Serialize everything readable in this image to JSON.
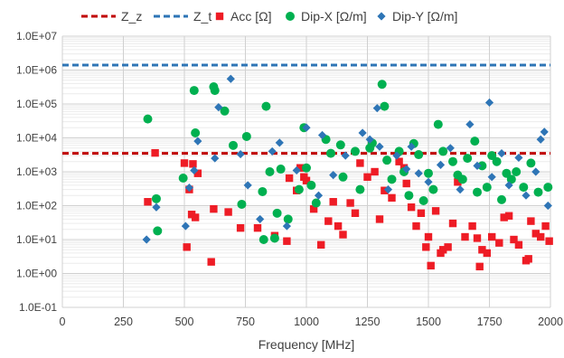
{
  "chart_data": {
    "type": "scatter",
    "xlabel": "Frequency [MHz]",
    "ylabel": "",
    "xlim": [
      0,
      2000
    ],
    "ylim": [
      0.1,
      10000000
    ],
    "y_scale": "log",
    "grid": true,
    "legend_position": "top",
    "x_ticks": [
      "0",
      "250",
      "500",
      "750",
      "1000",
      "1250",
      "1500",
      "1750",
      "2000"
    ],
    "y_ticks": [
      "1.0E-01",
      "1.0E+00",
      "1.0E+01",
      "1.0E+02",
      "1.0E+03",
      "1.0E+04",
      "1.0E+05",
      "1.0E+06",
      "1.0E+07"
    ],
    "reference_lines": [
      {
        "name": "Z_z",
        "y": 3500,
        "color": "#c00000",
        "style": "dashed"
      },
      {
        "name": "Z_t",
        "y": 1400000,
        "color": "#2e75b6",
        "style": "dashed"
      }
    ],
    "series": [
      {
        "name": "Acc [Ω]",
        "marker": "square",
        "color": "#ee1c25",
        "points": [
          [
            350,
            130
          ],
          [
            380,
            3600
          ],
          [
            500,
            1800
          ],
          [
            510,
            6
          ],
          [
            520,
            300
          ],
          [
            530,
            55
          ],
          [
            535,
            1700
          ],
          [
            545,
            45
          ],
          [
            555,
            900
          ],
          [
            610,
            2.2
          ],
          [
            620,
            80
          ],
          [
            680,
            65
          ],
          [
            730,
            22
          ],
          [
            800,
            22
          ],
          [
            870,
            13
          ],
          [
            920,
            9
          ],
          [
            930,
            650
          ],
          [
            960,
            280
          ],
          [
            975,
            1300
          ],
          [
            990,
            700
          ],
          [
            1000,
            550
          ],
          [
            1030,
            80
          ],
          [
            1060,
            7
          ],
          [
            1090,
            35
          ],
          [
            1110,
            130
          ],
          [
            1130,
            25
          ],
          [
            1150,
            14
          ],
          [
            1180,
            120
          ],
          [
            1200,
            60
          ],
          [
            1220,
            1800
          ],
          [
            1250,
            700
          ],
          [
            1280,
            1000
          ],
          [
            1300,
            40
          ],
          [
            1320,
            280
          ],
          [
            1350,
            170
          ],
          [
            1380,
            2000
          ],
          [
            1400,
            1300
          ],
          [
            1410,
            450
          ],
          [
            1430,
            90
          ],
          [
            1450,
            25
          ],
          [
            1470,
            60
          ],
          [
            1490,
            6
          ],
          [
            1500,
            12
          ],
          [
            1510,
            1.7
          ],
          [
            1530,
            70
          ],
          [
            1550,
            4
          ],
          [
            1560,
            5
          ],
          [
            1580,
            6
          ],
          [
            1600,
            30
          ],
          [
            1620,
            500
          ],
          [
            1650,
            12
          ],
          [
            1680,
            25
          ],
          [
            1700,
            11
          ],
          [
            1710,
            1.6
          ],
          [
            1720,
            5
          ],
          [
            1740,
            4
          ],
          [
            1760,
            12
          ],
          [
            1790,
            8
          ],
          [
            1810,
            45
          ],
          [
            1830,
            50
          ],
          [
            1850,
            10
          ],
          [
            1870,
            7
          ],
          [
            1900,
            2.4
          ],
          [
            1910,
            2.7
          ],
          [
            1920,
            35
          ],
          [
            1940,
            15
          ],
          [
            1960,
            12
          ],
          [
            1980,
            25
          ],
          [
            1995,
            9
          ]
        ]
      },
      {
        "name": "Dip-X [Ω/m]",
        "marker": "circle",
        "color": "#00b050",
        "points": [
          [
            350,
            36000
          ],
          [
            385,
            160
          ],
          [
            390,
            18
          ],
          [
            495,
            650
          ],
          [
            540,
            250000
          ],
          [
            545,
            14000
          ],
          [
            620,
            320000
          ],
          [
            625,
            250000
          ],
          [
            665,
            62000
          ],
          [
            700,
            6000
          ],
          [
            735,
            110
          ],
          [
            755,
            11000
          ],
          [
            820,
            260
          ],
          [
            825,
            10
          ],
          [
            835,
            85000
          ],
          [
            850,
            1000
          ],
          [
            870,
            11
          ],
          [
            880,
            60
          ],
          [
            895,
            1200
          ],
          [
            925,
            40
          ],
          [
            970,
            300
          ],
          [
            990,
            20000
          ],
          [
            1000,
            1300
          ],
          [
            1020,
            400
          ],
          [
            1040,
            120
          ],
          [
            1080,
            9000
          ],
          [
            1100,
            3500
          ],
          [
            1140,
            6200
          ],
          [
            1150,
            700
          ],
          [
            1200,
            4000
          ],
          [
            1220,
            300
          ],
          [
            1260,
            5000
          ],
          [
            1270,
            7000
          ],
          [
            1310,
            380000
          ],
          [
            1320,
            85000
          ],
          [
            1330,
            2200
          ],
          [
            1350,
            600
          ],
          [
            1380,
            4000
          ],
          [
            1400,
            1000
          ],
          [
            1420,
            200
          ],
          [
            1440,
            6800
          ],
          [
            1460,
            3200
          ],
          [
            1480,
            140
          ],
          [
            1500,
            900
          ],
          [
            1520,
            300
          ],
          [
            1540,
            25000
          ],
          [
            1560,
            4000
          ],
          [
            1600,
            2000
          ],
          [
            1620,
            800
          ],
          [
            1640,
            600
          ],
          [
            1660,
            2500
          ],
          [
            1690,
            8000
          ],
          [
            1700,
            250
          ],
          [
            1720,
            1500
          ],
          [
            1740,
            350
          ],
          [
            1760,
            3000
          ],
          [
            1780,
            2000
          ],
          [
            1800,
            150
          ],
          [
            1820,
            900
          ],
          [
            1840,
            600
          ],
          [
            1860,
            1000
          ],
          [
            1890,
            350
          ],
          [
            1920,
            1800
          ],
          [
            1950,
            250
          ],
          [
            1990,
            350
          ]
        ]
      },
      {
        "name": "Dip-Y [Ω/m]",
        "marker": "diamond",
        "color": "#2e75b6",
        "points": [
          [
            345,
            10
          ],
          [
            385,
            90
          ],
          [
            505,
            25
          ],
          [
            520,
            340
          ],
          [
            540,
            1100
          ],
          [
            555,
            8000
          ],
          [
            625,
            2500
          ],
          [
            640,
            80000
          ],
          [
            690,
            550000
          ],
          [
            730,
            3300
          ],
          [
            760,
            400
          ],
          [
            810,
            40
          ],
          [
            860,
            4000
          ],
          [
            890,
            7200
          ],
          [
            920,
            25
          ],
          [
            960,
            1100
          ],
          [
            1000,
            20000
          ],
          [
            1050,
            200
          ],
          [
            1065,
            12000
          ],
          [
            1110,
            800
          ],
          [
            1160,
            3000
          ],
          [
            1230,
            14000
          ],
          [
            1260,
            9000
          ],
          [
            1290,
            75000
          ],
          [
            1300,
            5500
          ],
          [
            1335,
            300
          ],
          [
            1370,
            3000
          ],
          [
            1410,
            1200
          ],
          [
            1430,
            5500
          ],
          [
            1460,
            900
          ],
          [
            1500,
            500
          ],
          [
            1550,
            1600
          ],
          [
            1590,
            5000
          ],
          [
            1630,
            300
          ],
          [
            1670,
            25000
          ],
          [
            1700,
            1500
          ],
          [
            1750,
            110000
          ],
          [
            1760,
            700
          ],
          [
            1800,
            3500
          ],
          [
            1830,
            400
          ],
          [
            1870,
            2600
          ],
          [
            1900,
            200
          ],
          [
            1940,
            1000
          ],
          [
            1960,
            9000
          ],
          [
            1975,
            15000
          ],
          [
            1990,
            100
          ]
        ]
      }
    ]
  }
}
